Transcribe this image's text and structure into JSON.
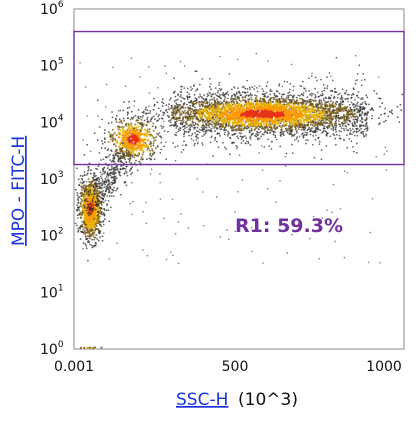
{
  "chart_data": {
    "type": "scatter",
    "title": "",
    "xlabel": "SSC-H",
    "xlabel_unit": "(10^3)",
    "ylabel": "MPO - FITC-H",
    "x_scale": "linear",
    "y_scale": "log",
    "xlim": [
      0.001,
      1000
    ],
    "ylim": [
      1,
      1000000
    ],
    "x_ticks": [
      "0.001",
      "500",
      "1000"
    ],
    "y_ticks": [
      {
        "base": "10",
        "exp": "0",
        "value": 1
      },
      {
        "base": "10",
        "exp": "1",
        "value": 10
      },
      {
        "base": "10",
        "exp": "2",
        "value": 100
      },
      {
        "base": "10",
        "exp": "3",
        "value": 1000
      },
      {
        "base": "10",
        "exp": "4",
        "value": 10000
      },
      {
        "base": "10",
        "exp": "5",
        "value": 100000
      },
      {
        "base": "10",
        "exp": "6",
        "value": 1000000
      }
    ],
    "gate": {
      "label": "R1: 59.3%",
      "x_range": [
        0.001,
        1000
      ],
      "y_range": [
        1800,
        400000
      ],
      "color": "#7030a0"
    },
    "populations": [
      {
        "x_center": 50,
        "y_center": 300,
        "x_spread": 18,
        "y_log_spread": 0.28
      },
      {
        "x_center": 180,
        "y_center": 5000,
        "x_spread": 40,
        "y_log_spread": 0.2
      },
      {
        "x_center": 570,
        "y_center": 14000,
        "x_spread": 150,
        "y_log_spread": 0.16
      }
    ],
    "colors": {
      "sparse": "#2b2b2b",
      "low": "#7a5a10",
      "mid": "#e8b000",
      "high": "#ff9a00",
      "peak": "#e8321a",
      "gate": "#7030a0",
      "axis_link": "#1a33e0"
    }
  }
}
